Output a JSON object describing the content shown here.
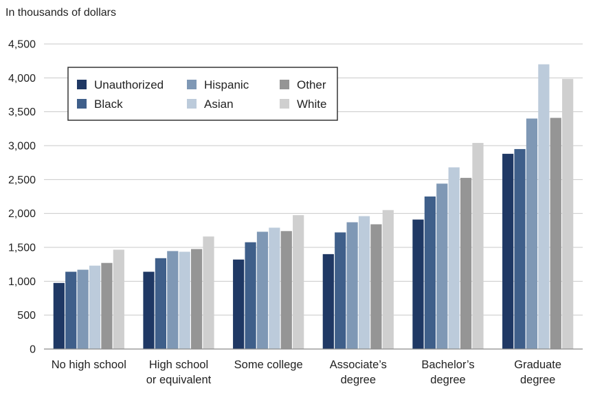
{
  "chart_data": {
    "type": "bar",
    "ylabel": "In thousands of dollars",
    "ylim": [
      0,
      4500
    ],
    "yticks": [
      0,
      500,
      1000,
      1500,
      2000,
      2500,
      3000,
      3500,
      4000,
      4500
    ],
    "ytick_labels": [
      "0",
      "500",
      "1,000",
      "1,500",
      "2,000",
      "2,500",
      "3,000",
      "3,500",
      "4,000",
      "4,500"
    ],
    "grid": true,
    "legend_position": "top-left",
    "categories": [
      [
        "No high school"
      ],
      [
        "High school",
        "or equivalent"
      ],
      [
        "Some college"
      ],
      [
        "Associate’s",
        "degree"
      ],
      [
        "Bachelor’s",
        "degree"
      ],
      [
        "Graduate",
        "degree"
      ]
    ],
    "series": [
      {
        "name": "Unauthorized",
        "color": "#1f3864",
        "values": [
          975,
          1140,
          1320,
          1400,
          1910,
          2880
        ]
      },
      {
        "name": "Black",
        "color": "#3f5f8a",
        "values": [
          1140,
          1340,
          1575,
          1720,
          2250,
          2950
        ]
      },
      {
        "name": "Hispanic",
        "color": "#7f98b5",
        "values": [
          1170,
          1445,
          1730,
          1870,
          2440,
          3400
        ]
      },
      {
        "name": "Asian",
        "color": "#bccbdb",
        "values": [
          1230,
          1435,
          1790,
          1960,
          2680,
          4200
        ]
      },
      {
        "name": "Other",
        "color": "#959595",
        "values": [
          1270,
          1475,
          1740,
          1840,
          2525,
          3410
        ]
      },
      {
        "name": "White",
        "color": "#cfcfcf",
        "values": [
          1465,
          1660,
          1975,
          2050,
          3040,
          3985
        ]
      }
    ]
  }
}
